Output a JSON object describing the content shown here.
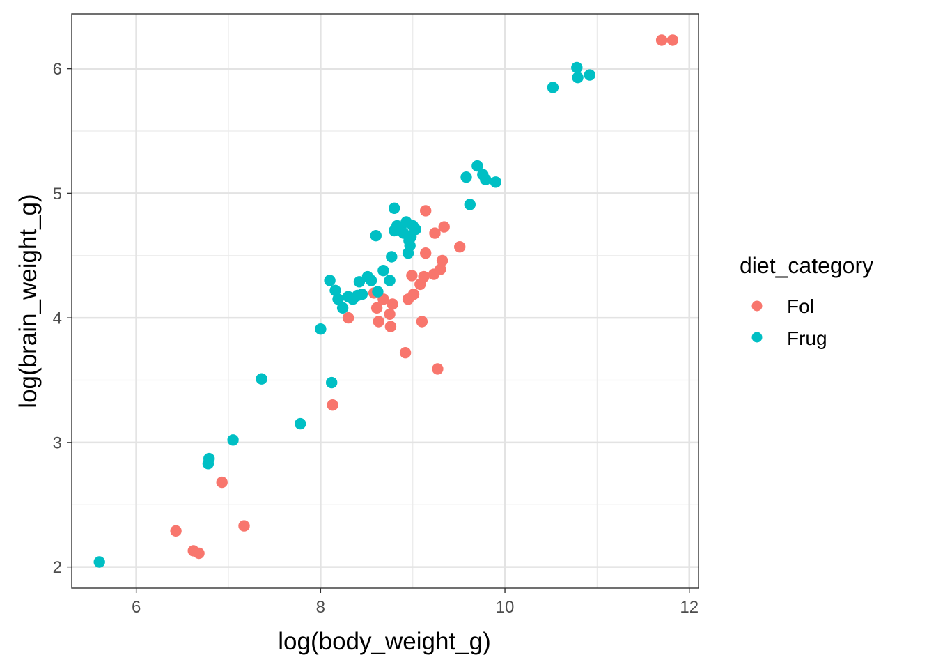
{
  "chart_data": {
    "type": "scatter",
    "xlabel": "log(body_weight_g)",
    "ylabel": "log(brain_weight_g)",
    "xlim": [
      5.3,
      12.1
    ],
    "ylim": [
      1.83,
      6.44
    ],
    "x_ticks": [
      6,
      8,
      10,
      12
    ],
    "y_ticks": [
      2,
      3,
      4,
      5,
      6
    ],
    "x_tick_labels": [
      "6",
      "8",
      "10",
      "12"
    ],
    "y_tick_labels": [
      "2",
      "3",
      "4",
      "5",
      "6"
    ],
    "legend": {
      "title": "diet_category",
      "position": "right",
      "entries": [
        {
          "label": "Fol",
          "color": "#F8766D"
        },
        {
          "label": "Frug",
          "color": "#00BFC4"
        }
      ]
    },
    "series": [
      {
        "name": "Fol",
        "color": "#F8766D",
        "points": [
          [
            6.43,
            2.29
          ],
          [
            6.62,
            2.13
          ],
          [
            6.68,
            2.11
          ],
          [
            6.93,
            2.68
          ],
          [
            7.17,
            2.33
          ],
          [
            8.13,
            3.3
          ],
          [
            8.3,
            4.0
          ],
          [
            8.58,
            4.2
          ],
          [
            8.61,
            4.08
          ],
          [
            8.63,
            3.97
          ],
          [
            8.68,
            4.15
          ],
          [
            8.75,
            4.03
          ],
          [
            8.76,
            3.93
          ],
          [
            8.78,
            4.11
          ],
          [
            8.92,
            3.72
          ],
          [
            8.95,
            4.15
          ],
          [
            8.99,
            4.34
          ],
          [
            9.01,
            4.19
          ],
          [
            9.08,
            4.27
          ],
          [
            9.1,
            3.97
          ],
          [
            9.12,
            4.33
          ],
          [
            9.14,
            4.52
          ],
          [
            9.14,
            4.86
          ],
          [
            9.23,
            4.35
          ],
          [
            9.24,
            4.68
          ],
          [
            9.27,
            3.59
          ],
          [
            9.3,
            4.39
          ],
          [
            9.32,
            4.46
          ],
          [
            9.34,
            4.73
          ],
          [
            9.51,
            4.57
          ],
          [
            11.7,
            6.23
          ],
          [
            11.82,
            6.23
          ]
        ]
      },
      {
        "name": "Frug",
        "color": "#00BFC4",
        "points": [
          [
            5.6,
            2.04
          ],
          [
            6.78,
            2.83
          ],
          [
            6.79,
            2.87
          ],
          [
            7.05,
            3.02
          ],
          [
            7.36,
            3.51
          ],
          [
            7.78,
            3.15
          ],
          [
            8.0,
            3.91
          ],
          [
            8.1,
            4.3
          ],
          [
            8.12,
            3.48
          ],
          [
            8.16,
            4.22
          ],
          [
            8.19,
            4.15
          ],
          [
            8.24,
            4.08
          ],
          [
            8.3,
            4.17
          ],
          [
            8.35,
            4.15
          ],
          [
            8.4,
            4.18
          ],
          [
            8.42,
            4.29
          ],
          [
            8.45,
            4.19
          ],
          [
            8.51,
            4.33
          ],
          [
            8.55,
            4.3
          ],
          [
            8.6,
            4.66
          ],
          [
            8.62,
            4.21
          ],
          [
            8.68,
            4.38
          ],
          [
            8.75,
            4.3
          ],
          [
            8.77,
            4.49
          ],
          [
            8.8,
            4.88
          ],
          [
            8.8,
            4.7
          ],
          [
            8.83,
            4.74
          ],
          [
            8.87,
            4.72
          ],
          [
            8.9,
            4.68
          ],
          [
            8.93,
            4.77
          ],
          [
            8.95,
            4.52
          ],
          [
            8.96,
            4.62
          ],
          [
            8.97,
            4.58
          ],
          [
            8.98,
            4.65
          ],
          [
            9.0,
            4.74
          ],
          [
            9.03,
            4.71
          ],
          [
            9.58,
            5.13
          ],
          [
            9.62,
            4.91
          ],
          [
            9.7,
            5.22
          ],
          [
            9.76,
            5.15
          ],
          [
            9.79,
            5.11
          ],
          [
            9.9,
            5.09
          ],
          [
            10.52,
            5.85
          ],
          [
            10.78,
            6.01
          ],
          [
            10.79,
            5.93
          ],
          [
            10.92,
            5.95
          ]
        ]
      }
    ]
  }
}
